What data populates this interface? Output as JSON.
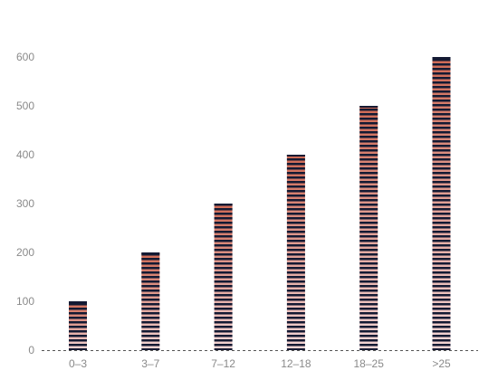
{
  "chart_data": {
    "type": "bar",
    "title": "",
    "xlabel": "",
    "ylabel": "",
    "categories": [
      "0–3",
      "3–7",
      "7–12",
      "12–18",
      "18–25",
      ">25"
    ],
    "values": [
      100,
      200,
      300,
      400,
      500,
      600
    ],
    "ylim": [
      0,
      600
    ],
    "yticks": [
      0,
      100,
      200,
      300,
      400,
      500,
      600
    ],
    "grid": false,
    "legend": "none",
    "colors": {
      "bar_top": "#cf6a55",
      "bar_bottom": "#f3d6d6",
      "stripe": "#141a33",
      "axis": "#555555",
      "tick_text": "#8a8a8a"
    }
  }
}
